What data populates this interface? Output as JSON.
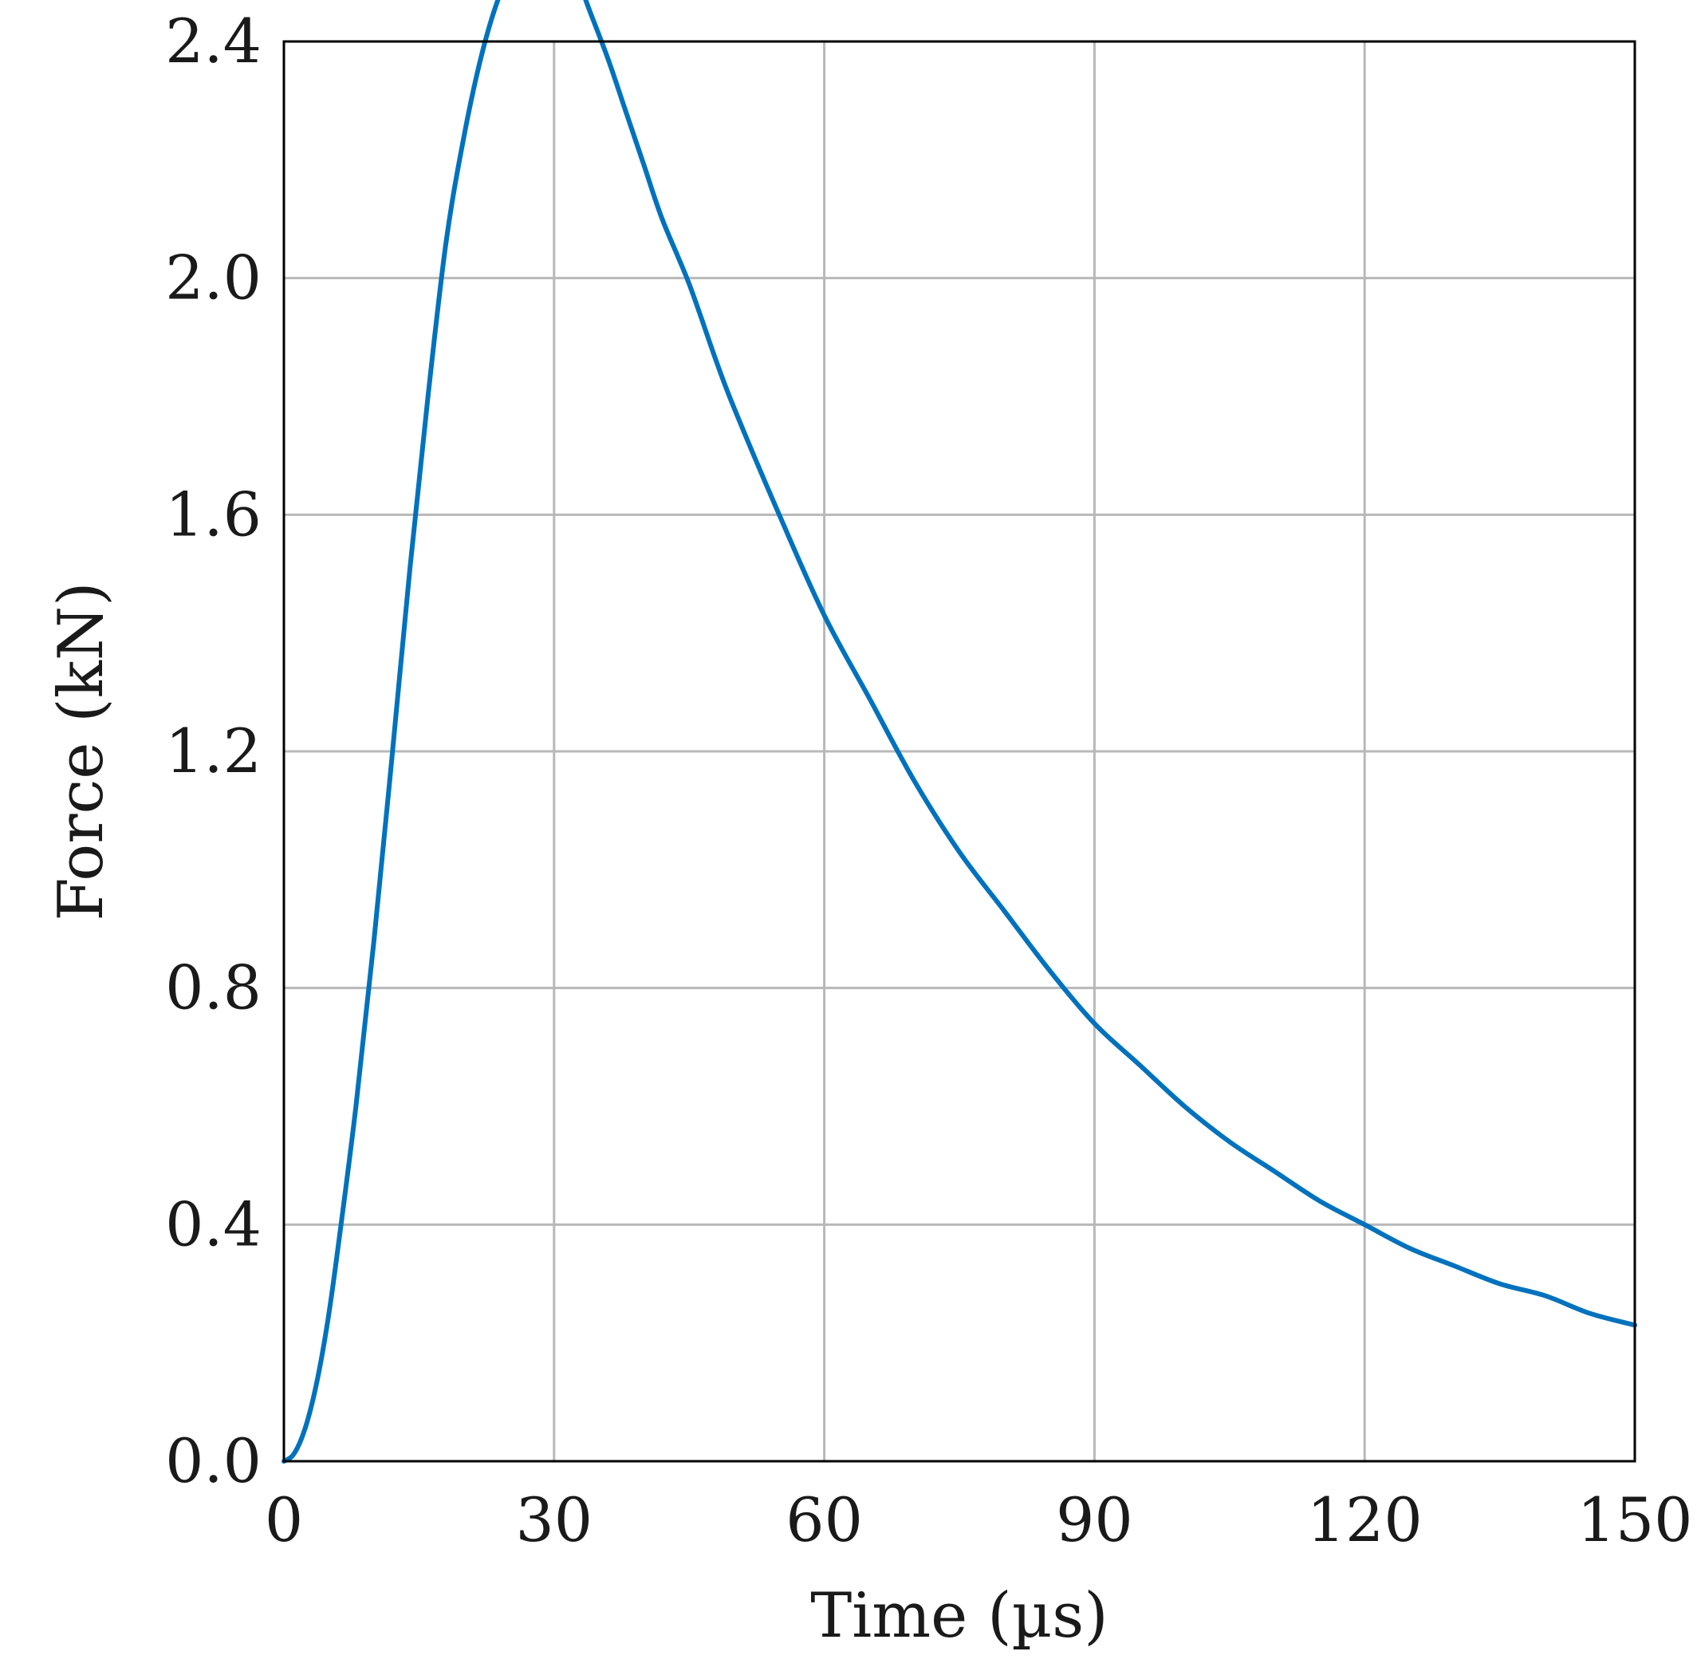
{
  "chart_data": {
    "type": "line",
    "title": "",
    "xlabel": "Time (µs)",
    "ylabel": "Force (kN)",
    "xlim": [
      0,
      150
    ],
    "ylim": [
      0,
      2.4
    ],
    "xticks": [
      0,
      30,
      60,
      90,
      120,
      150
    ],
    "xtick_labels": [
      "0",
      "30",
      "60",
      "90",
      "120",
      "150"
    ],
    "yticks": [
      0,
      0.4,
      0.8,
      1.2,
      1.6,
      2.0,
      2.4
    ],
    "ytick_labels": [
      "0.0",
      "0.4",
      "0.8",
      "1.2",
      "1.6",
      "2.0",
      "2.4"
    ],
    "grid": true,
    "legend": "none",
    "colors": {
      "series": "#0072bd",
      "grid": "#b8b8b8",
      "frame": "#000000"
    },
    "series": [
      {
        "x": [
          0,
          1,
          2,
          3,
          4,
          5,
          6,
          8,
          10,
          12,
          14,
          16,
          18,
          20,
          22,
          24,
          26,
          28,
          29,
          30,
          31,
          32,
          33,
          34,
          36,
          38,
          40,
          42,
          45,
          48,
          50,
          55,
          60,
          65,
          70,
          75,
          80,
          85,
          90,
          95,
          100,
          105,
          110,
          115,
          120,
          125,
          130,
          135,
          140,
          145,
          150
        ],
        "y": [
          0,
          0.01,
          0.04,
          0.09,
          0.16,
          0.25,
          0.36,
          0.6,
          0.88,
          1.19,
          1.51,
          1.8,
          2.06,
          2.24,
          2.38,
          2.48,
          2.54,
          2.56,
          2.57,
          2.56,
          2.55,
          2.52,
          2.49,
          2.45,
          2.37,
          2.28,
          2.19,
          2.1,
          1.99,
          1.86,
          1.78,
          1.6,
          1.43,
          1.29,
          1.15,
          1.03,
          0.93,
          0.83,
          0.74,
          0.67,
          0.6,
          0.54,
          0.49,
          0.44,
          0.4,
          0.36,
          0.33,
          0.3,
          0.28,
          0.25,
          0.23
        ]
      }
    ]
  }
}
